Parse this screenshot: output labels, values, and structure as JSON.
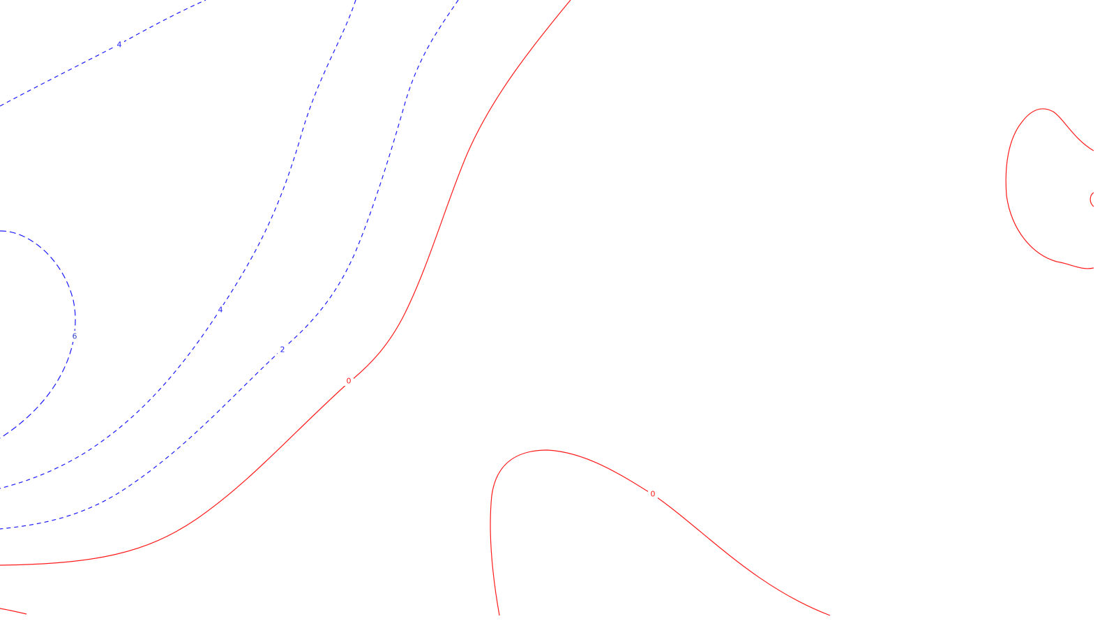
{
  "map": {
    "colors": {
      "negative": "#1a1aff",
      "zero": "#ff1a1a",
      "label_six": "#3344cc"
    },
    "labels": [
      {
        "id": "label-neg4-top",
        "text": "4",
        "line": "contour-neg4-top"
      },
      {
        "id": "label-neg6",
        "text": "6",
        "line": "contour-neg6"
      },
      {
        "id": "label-neg4",
        "text": "4",
        "line": "contour-neg4"
      },
      {
        "id": "label-neg2",
        "text": "2",
        "line": "contour-neg2"
      },
      {
        "id": "label-zero-main",
        "text": "0",
        "line": "contour-zero-main"
      },
      {
        "id": "label-zero-lower",
        "text": "0",
        "line": "contour-zero-lower"
      }
    ]
  }
}
